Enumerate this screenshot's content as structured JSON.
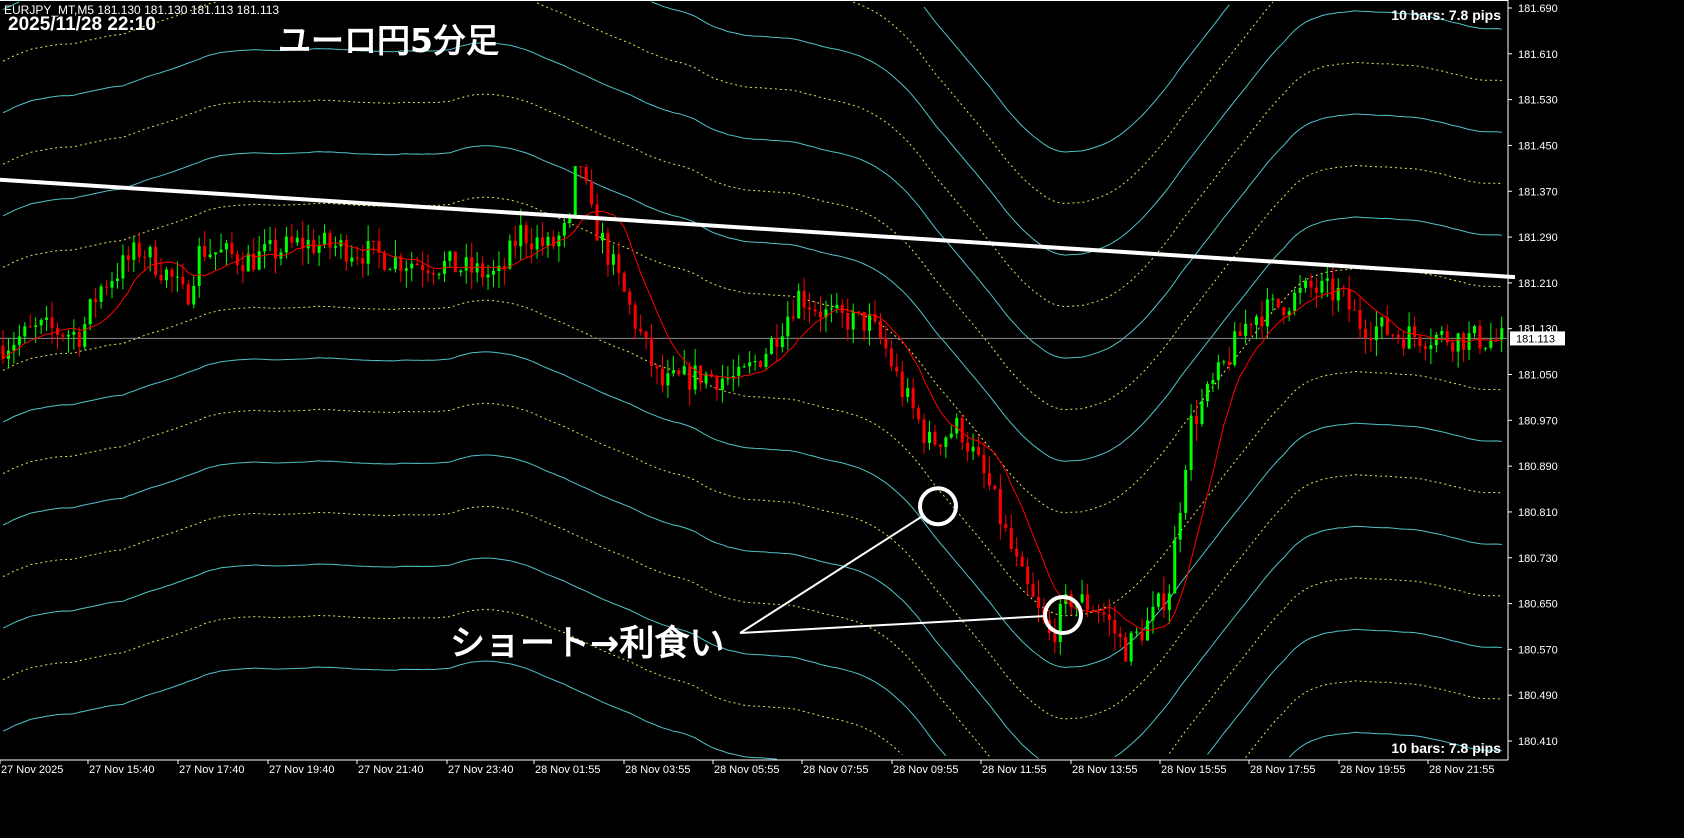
{
  "header": {
    "symbol_line": "EURJPY_MT,M5  181.130 181.130 181.113 181.113",
    "datetime": "2025/11/28 22:10",
    "title": "ユーロ円5分足",
    "pips_top": "10 bars: 7.8 pips",
    "pips_bottom": "10 bars: 7.8 pips"
  },
  "annotation": {
    "text": "ショート→利食い"
  },
  "colors": {
    "background": "#000000",
    "bull": "#00ff00",
    "bear": "#ff0000",
    "ma": "#ff0000",
    "band_solid": "#4fc3c8",
    "band_dotted": "#e8e060",
    "trendline": "#ffffff",
    "price_line": "#8a8a8a"
  },
  "chart_data": {
    "type": "candlestick",
    "symbol": "EURJPY_MT",
    "timeframe": "M5",
    "ylim": [
      180.39,
      181.71
    ],
    "current_price": 181.113,
    "y_ticks": [
      "181.690",
      "181.610",
      "181.530",
      "181.450",
      "181.370",
      "181.290",
      "181.210",
      "181.130",
      "181.050",
      "180.970",
      "180.890",
      "180.810",
      "180.730",
      "180.650",
      "180.570",
      "180.490",
      "180.410"
    ],
    "x_ticks": [
      "27 Nov 2025",
      "27 Nov 15:40",
      "27 Nov 17:40",
      "27 Nov 19:40",
      "27 Nov 21:40",
      "27 Nov 23:40",
      "28 Nov 01:55",
      "28 Nov 03:55",
      "28 Nov 05:55",
      "28 Nov 07:55",
      "28 Nov 09:55",
      "28 Nov 11:55",
      "28 Nov 13:55",
      "28 Nov 15:55",
      "28 Nov 17:55",
      "28 Nov 19:55",
      "28 Nov 21:55"
    ],
    "price_path": [
      {
        "t": "27 Nov 13:40",
        "p": 181.1
      },
      {
        "t": "27 Nov 14:35",
        "p": 181.13
      },
      {
        "t": "27 Nov 15:30",
        "p": 181.12
      },
      {
        "t": "27 Nov 15:55",
        "p": 181.2
      },
      {
        "t": "27 Nov 16:50",
        "p": 181.27
      },
      {
        "t": "27 Nov 17:30",
        "p": 181.22
      },
      {
        "t": "27 Nov 17:50",
        "p": 181.18
      },
      {
        "t": "27 Nov 18:10",
        "p": 181.27
      },
      {
        "t": "27 Nov 19:15",
        "p": 181.25
      },
      {
        "t": "27 Nov 20:25",
        "p": 181.28
      },
      {
        "t": "27 Nov 21:30",
        "p": 181.27
      },
      {
        "t": "27 Nov 22:35",
        "p": 181.25
      },
      {
        "t": "27 Nov 23:45",
        "p": 181.24
      },
      {
        "t": "28 Nov 01:02",
        "p": 181.22
      },
      {
        "t": "28 Nov 01:33",
        "p": 181.3
      },
      {
        "t": "28 Nov 02:16",
        "p": 181.27
      },
      {
        "t": "28 Nov 02:43",
        "p": 181.31
      },
      {
        "t": "28 Nov 02:54",
        "p": 181.44
      },
      {
        "t": "28 Nov 03:10",
        "p": 181.33
      },
      {
        "t": "28 Nov 03:37",
        "p": 181.25
      },
      {
        "t": "28 Nov 04:17",
        "p": 181.12
      },
      {
        "t": "28 Nov 04:44",
        "p": 181.03
      },
      {
        "t": "28 Nov 05:38",
        "p": 181.05
      },
      {
        "t": "28 Nov 06:31",
        "p": 181.04
      },
      {
        "t": "28 Nov 07:11",
        "p": 181.1
      },
      {
        "t": "28 Nov 07:51",
        "p": 181.19
      },
      {
        "t": "28 Nov 08:32",
        "p": 181.15
      },
      {
        "t": "28 Nov 09:25",
        "p": 181.14
      },
      {
        "t": "28 Nov 09:45",
        "p": 181.1
      },
      {
        "t": "28 Nov 10:06",
        "p": 181.03
      },
      {
        "t": "28 Nov 10:46",
        "p": 180.93
      },
      {
        "t": "28 Nov 11:26",
        "p": 180.96
      },
      {
        "t": "28 Nov 12:07",
        "p": 180.85
      },
      {
        "t": "28 Nov 12:47",
        "p": 180.7
      },
      {
        "t": "28 Nov 13:27",
        "p": 180.59
      },
      {
        "t": "28 Nov 13:54",
        "p": 180.66
      },
      {
        "t": "28 Nov 14:35",
        "p": 180.64
      },
      {
        "t": "28 Nov 15:08",
        "p": 180.57
      },
      {
        "t": "28 Nov 15:42",
        "p": 180.62
      },
      {
        "t": "28 Nov 16:08",
        "p": 180.68
      },
      {
        "t": "28 Nov 16:35",
        "p": 180.96
      },
      {
        "t": "28 Nov 17:15",
        "p": 181.05
      },
      {
        "t": "28 Nov 17:56",
        "p": 181.15
      },
      {
        "t": "28 Nov 18:36",
        "p": 181.17
      },
      {
        "t": "28 Nov 19:16",
        "p": 181.2
      },
      {
        "t": "28 Nov 19:56",
        "p": 181.19
      },
      {
        "t": "28 Nov 20:23",
        "p": 181.14
      },
      {
        "t": "28 Nov 21:17",
        "p": 181.12
      },
      {
        "t": "28 Nov 22:10",
        "p": 181.11
      }
    ],
    "trendline": {
      "start_price": 181.39,
      "end_price": 181.22
    },
    "band_step": 0.09,
    "markers": [
      {
        "t": "28 Nov 10:20",
        "p": 180.82
      },
      {
        "t": "28 Nov 13:40",
        "p": 180.63
      }
    ]
  }
}
